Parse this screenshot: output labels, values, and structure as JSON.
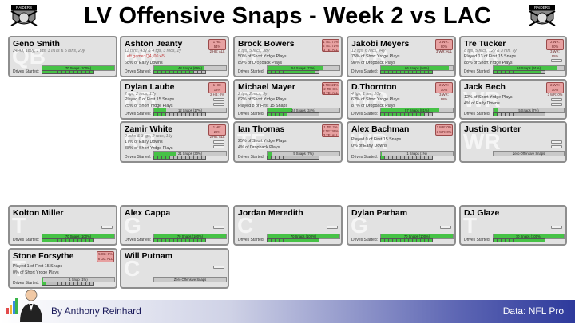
{
  "header": {
    "title": "LV Offensive Snaps - Week 2 vs LAC"
  },
  "footer": {
    "byline": "By Anthony Reinhard",
    "source": "Data: NFL Pro"
  },
  "colors": {
    "fill_green": "#46c246",
    "badge_red": "#e7a1a1",
    "footer_blue": "#2e3a9c"
  },
  "players": {
    "geno": {
      "name": "Geno Smith",
      "stats": "24/43, 180y, 1 tds, 3 INTs & 5 rshs, 20y",
      "snaps": "70 Snaps (100%)",
      "pos": "QB"
    },
    "jeanty": {
      "name": "Ashton Jeanty",
      "stats": "11 rshs, 43y & 4 tgs, 3 recs, 1y",
      "l1": "Left game: Q4, 06:45",
      "l2": "68% of Early Downs",
      "snaps": "48 Snaps (69%)",
      "b1": "1 HB: 54%",
      "b2": "2 HB: ALL",
      "pos": "RB"
    },
    "bowers": {
      "name": "Brock Bowers",
      "stats": "8 tgs, 5 recs, 38y",
      "l1": "50% of Short Yrdge Plays",
      "l2": "89% of Dropback Plays",
      "snaps": "54 Snaps (77%)",
      "b1": "1 TE: 77%",
      "b2": "2 TE: 71%",
      "b3": "3 TE: ALL",
      "pos": "TE"
    },
    "meyers": {
      "name": "Jakobi Meyers",
      "stats": "12 tgs, 6 recs, 44y",
      "l1": "75% of Short Yrdge Plays",
      "l2": "98% of Dropback Plays",
      "snaps": "66 Snaps (94%)",
      "b1": "2 WR: 90%",
      "b2": "3 WR: ALL",
      "pos": "WR"
    },
    "tucker": {
      "name": "Tre Tucker",
      "stats": "8 tgs, 5 recs, 12y & 3 rsh, 7y",
      "l1": "Played 13 of First 15 Snaps",
      "l2": "88% of Short Yrdge Plays",
      "snaps": "64 Snaps (91%)",
      "b1": "2 WR: 90%",
      "b2": "3 WR: 95%",
      "pos": "WR"
    },
    "laube": {
      "name": "Dylan Laube",
      "stats": "2 tgs, 2 recs, 17y",
      "l1": "Played 0 of First 15 Snaps",
      "l2": "25% of Short Yrdge Plays",
      "snaps": "12 Snaps (17%)",
      "b1": "1 HB: 18%",
      "b2": "2 HB: 0%",
      "pos": "RB"
    },
    "mayer": {
      "name": "Michael Mayer",
      "stats": "2 tgs, 2 recs, 9y",
      "l1": "62% of Short Yrdge Plays",
      "l2": "Played 8 of First 15 Snaps",
      "snaps": "24 Snaps (34%)",
      "b1": "1 TE: 21%",
      "b2": "2 TE: 8%",
      "b3": "3 TE: ALL",
      "pos": "TE"
    },
    "thornton": {
      "name": "D.Thornton",
      "stats": "4 tgs, 1 rec, 20y",
      "l1": "62% of Short Yrdge Plays",
      "l2": "87% of Dropback Plays",
      "snaps": "57 Snaps (81%)",
      "b1": "2 WR: 10%",
      "b2": "3 WR: 98%",
      "pos": "WR"
    },
    "bech": {
      "name": "Jack Bech",
      "stats": "",
      "l1": "12% of Short Yrdge Plays",
      "l2": "4% of Early Downs",
      "snaps": "5 Snaps (7%)",
      "b1": "2 WR: 10%",
      "b2": "3 WR: 0%",
      "pos": "WR"
    },
    "white": {
      "name": "Zamir White",
      "stats": "2 rshs & 3 tgs, 2 recs, 15y",
      "l1": "17% of Early Downs",
      "l2": "38% of Short Yrdge Plays",
      "snaps": "21 Snaps (30%)",
      "b1": "1 HB: 28%",
      "b2": "2 HB: ALL",
      "pos": "RB"
    },
    "thomas": {
      "name": "Ian Thomas",
      "stats": "",
      "l1": "25% of Short Yrdge Plays",
      "l2": "4% of Dropback Plays",
      "snaps": "5 Snaps (7%)",
      "b1": "1 TE: 2%",
      "b2": "2 TE: 36%",
      "b3": "3 TE: ALL",
      "pos": "TE"
    },
    "bachman": {
      "name": "Alex Bachman",
      "stats": "",
      "l1": "Played 0 of First 15 Snaps",
      "l2": "0% of Early Downs",
      "snaps": "1 Snaps (1%)",
      "b1": "2 WR: 0%",
      "b2": "3 WR: 0%",
      "pos": "WR"
    },
    "shorter": {
      "name": "Justin Shorter",
      "stats": "",
      "snaps": "Zero Offensive Snaps",
      "pos": "WR"
    },
    "miller": {
      "name": "Kolton Miller",
      "snaps": "70 Snaps (100%)",
      "pos": "T"
    },
    "cappa": {
      "name": "Alex Cappa",
      "snaps": "70 Snaps (100%)",
      "pos": "G"
    },
    "meredith": {
      "name": "Jordan Meredith",
      "snaps": "70 Snaps (100%)",
      "pos": "C"
    },
    "parham": {
      "name": "Dylan Parham",
      "snaps": "70 Snaps (100%)",
      "pos": "G"
    },
    "glaze": {
      "name": "DJ Glaze",
      "snaps": "70 Snaps (100%)",
      "pos": "T"
    },
    "forsythe": {
      "name": "Stone Forsythe",
      "l1": "Played 1 of First 15 Snaps",
      "l2": "0% of Short Yrdge Plays",
      "snaps": "1 Snap (1%)",
      "b1": "5 OL: 0%",
      "b2": "6 OL: ALL",
      "pos": "T"
    },
    "putnam": {
      "name": "Will Putnam",
      "snaps": "Zero Offensive Snaps",
      "pos": "C"
    }
  },
  "labels": {
    "drives": "Drives Started:"
  },
  "snap_pct": {
    "geno": 100,
    "jeanty": 69,
    "bowers": 77,
    "meyers": 94,
    "tucker": 91,
    "laube": 17,
    "mayer": 34,
    "thornton": 81,
    "bech": 7,
    "white": 30,
    "thomas": 7,
    "bachman": 1,
    "shorter": 0,
    "miller": 100,
    "cappa": 100,
    "meredith": 100,
    "parham": 100,
    "glaze": 100,
    "forsythe": 1,
    "putnam": 0
  }
}
